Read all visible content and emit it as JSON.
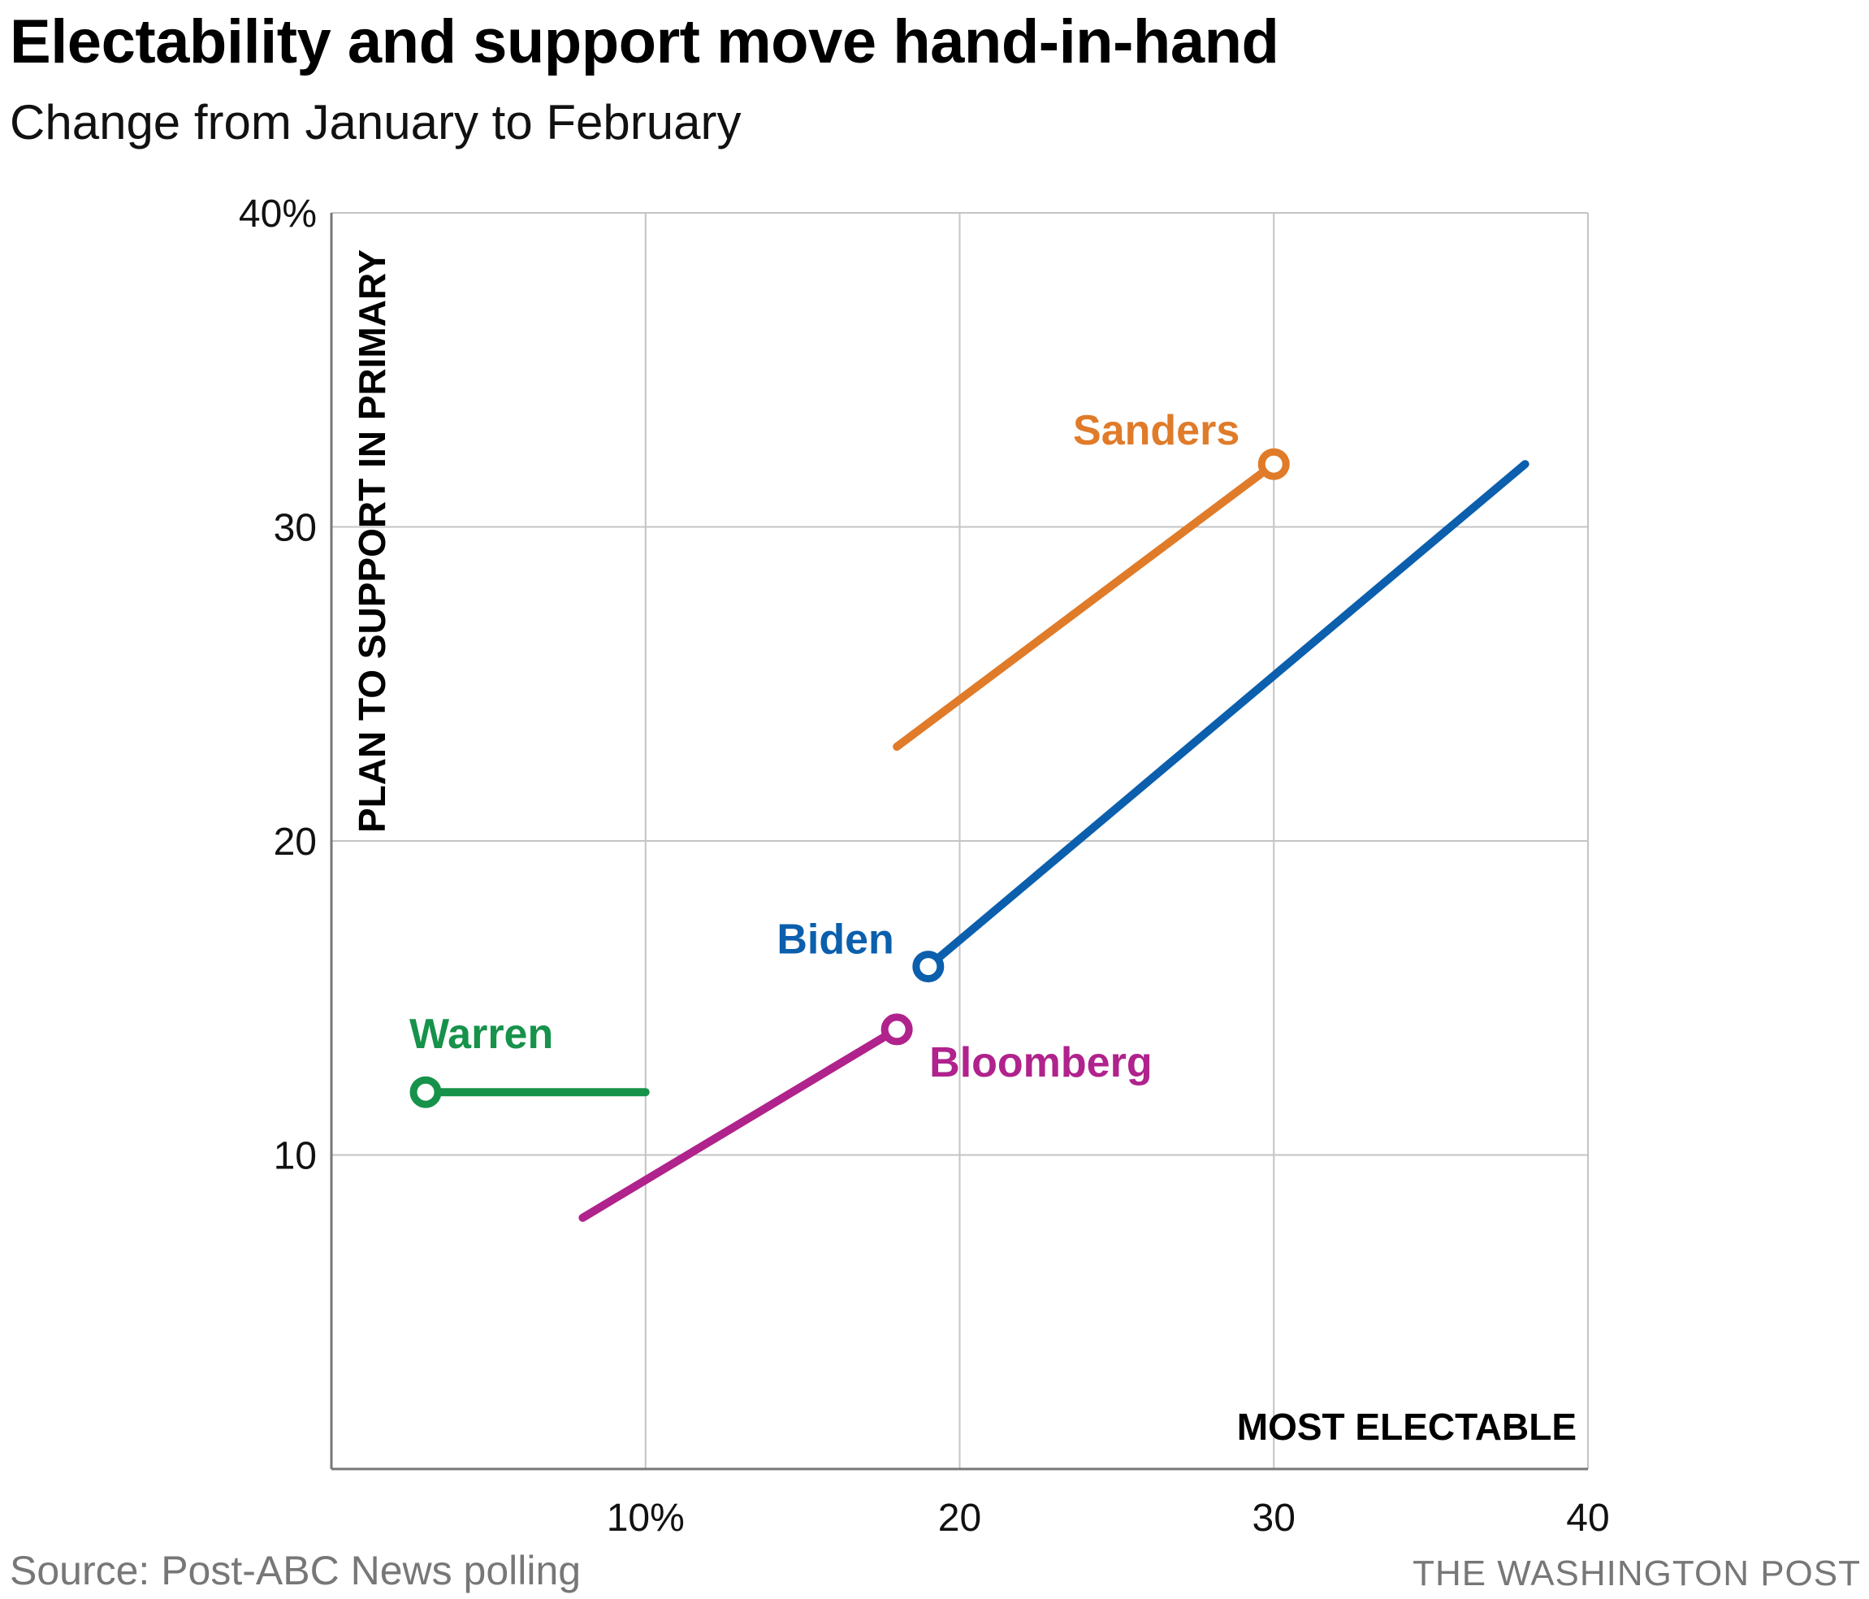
{
  "chart_data": {
    "type": "line",
    "title": "Electability and support move hand-in-hand",
    "subtitle": "Change from January to February",
    "xlabel": "MOST ELECTABLE",
    "ylabel": "PLAN TO SUPPORT IN PRIMARY",
    "xlim": [
      0,
      40
    ],
    "ylim": [
      0,
      40
    ],
    "grid": true,
    "x_ticks": [
      {
        "value": 10,
        "label": "10%"
      },
      {
        "value": 20,
        "label": "20"
      },
      {
        "value": 30,
        "label": "30"
      },
      {
        "value": 40,
        "label": "40"
      }
    ],
    "y_ticks": [
      {
        "value": 10,
        "label": "10"
      },
      {
        "value": 20,
        "label": "20"
      },
      {
        "value": 30,
        "label": "30"
      },
      {
        "value": 40,
        "label": "40%"
      }
    ],
    "series": [
      {
        "name": "Sanders",
        "color": "#e07b2a",
        "january": {
          "x": 18,
          "y": 23
        },
        "february": {
          "x": 30,
          "y": 32
        },
        "label_anchor": "end"
      },
      {
        "name": "Biden",
        "color": "#0b5fad",
        "january": {
          "x": 38,
          "y": 32
        },
        "february": {
          "x": 19,
          "y": 16
        },
        "label_anchor": "end"
      },
      {
        "name": "Bloomberg",
        "color": "#b0228c",
        "january": {
          "x": 8,
          "y": 8
        },
        "february": {
          "x": 18,
          "y": 14
        },
        "label_anchor": "start"
      },
      {
        "name": "Warren",
        "color": "#16924a",
        "january": {
          "x": 10,
          "y": 12
        },
        "february": {
          "x": 3,
          "y": 12
        },
        "label_anchor": "start"
      }
    ]
  },
  "footer": {
    "source": "Source: Post-ABC News polling",
    "credit": "THE WASHINGTON POST"
  }
}
